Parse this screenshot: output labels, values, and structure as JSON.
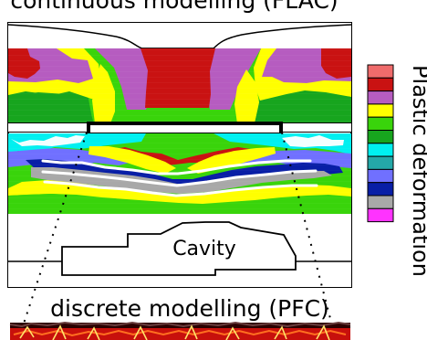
{
  "labels": {
    "top_title": "continuous modelling (FLAC)",
    "cavity": "Cavity",
    "bottom_title": "discrete modelling (PFC)",
    "legend_title": "Plastic deformation"
  },
  "legend_colors": [
    "#ef6b6b",
    "#c91212",
    "#b65cc0",
    "#ffff00",
    "#39d40b",
    "#17a51e",
    "#00f0f0",
    "#24a8a8",
    "#7070ff",
    "#081ea6",
    "#a8a8a8",
    "#ff33ff"
  ],
  "colors": {
    "outline": "#000000",
    "background": "#ffffff",
    "dem_dark": "#2b0000",
    "dem_red": "#c7100c",
    "dem_orange": "#ff6f20",
    "dem_yellow": "#ffe46a"
  }
}
